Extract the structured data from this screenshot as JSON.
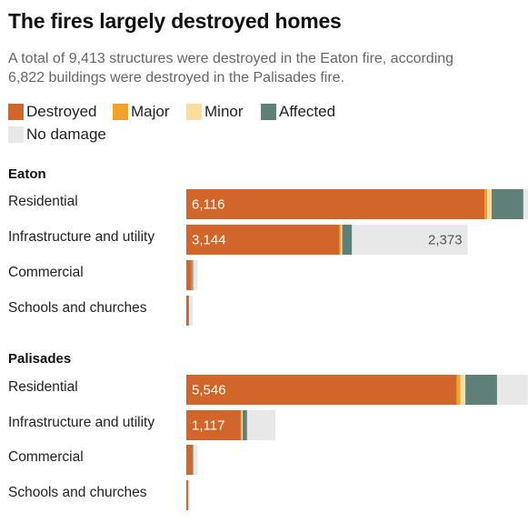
{
  "title": "The fires largely destroyed homes",
  "subtitle": "A total of 9,413 structures were destroyed in the Eaton fire, according\n6,822 buildings were destroyed in the Palisades fire.",
  "legend": [
    {
      "name": "Destroyed",
      "color": "#d2662a"
    },
    {
      "name": "Major",
      "color": "#f2a22b"
    },
    {
      "name": "Minor",
      "color": "#fbdc9c"
    },
    {
      "name": "Affected",
      "color": "#5f7f79"
    },
    {
      "name": "No damage",
      "color": "#e8e8e8"
    }
  ],
  "chart_data": {
    "type": "bar",
    "orientation": "horizontal",
    "stacked": true,
    "category_order": [
      "Destroyed",
      "Major",
      "Minor",
      "Affected",
      "No damage"
    ],
    "groups": [
      {
        "name": "Eaton",
        "rows": [
          {
            "label": "Residential",
            "values": [
              6116,
              60,
              90,
              650,
              130
            ],
            "value_labels": [
              "6,116",
              "",
              "",
              "",
              ""
            ]
          },
          {
            "label": "Infrastructure and utility",
            "values": [
              3144,
              25,
              30,
              200,
              2373
            ],
            "value_labels": [
              "3,144",
              "",
              "",
              "",
              "2,373"
            ]
          },
          {
            "label": "Commercial",
            "values": [
              110,
              0,
              10,
              20,
              90
            ],
            "value_labels": [
              "",
              "",
              "",
              "",
              ""
            ]
          },
          {
            "label": "Schools and churches",
            "values": [
              50,
              0,
              0,
              5,
              80
            ],
            "value_labels": [
              "",
              "",
              "",
              "",
              ""
            ]
          }
        ]
      },
      {
        "name": "Palisades",
        "rows": [
          {
            "label": "Residential",
            "values": [
              5546,
              80,
              100,
              650,
              630
            ],
            "value_labels": [
              "5,546",
              "",
              "",
              "",
              ""
            ]
          },
          {
            "label": "Infrastructure and utility",
            "values": [
              1117,
              20,
              20,
              90,
              580
            ],
            "value_labels": [
              "1,117",
              "",
              "",
              "",
              ""
            ]
          },
          {
            "label": "Commercial",
            "values": [
              130,
              0,
              10,
              10,
              80
            ],
            "value_labels": [
              "",
              "",
              "",
              "",
              ""
            ]
          },
          {
            "label": "Schools and churches",
            "values": [
              40,
              0,
              0,
              0,
              30
            ],
            "value_labels": [
              "",
              "",
              "",
              "",
              ""
            ]
          }
        ]
      }
    ]
  }
}
